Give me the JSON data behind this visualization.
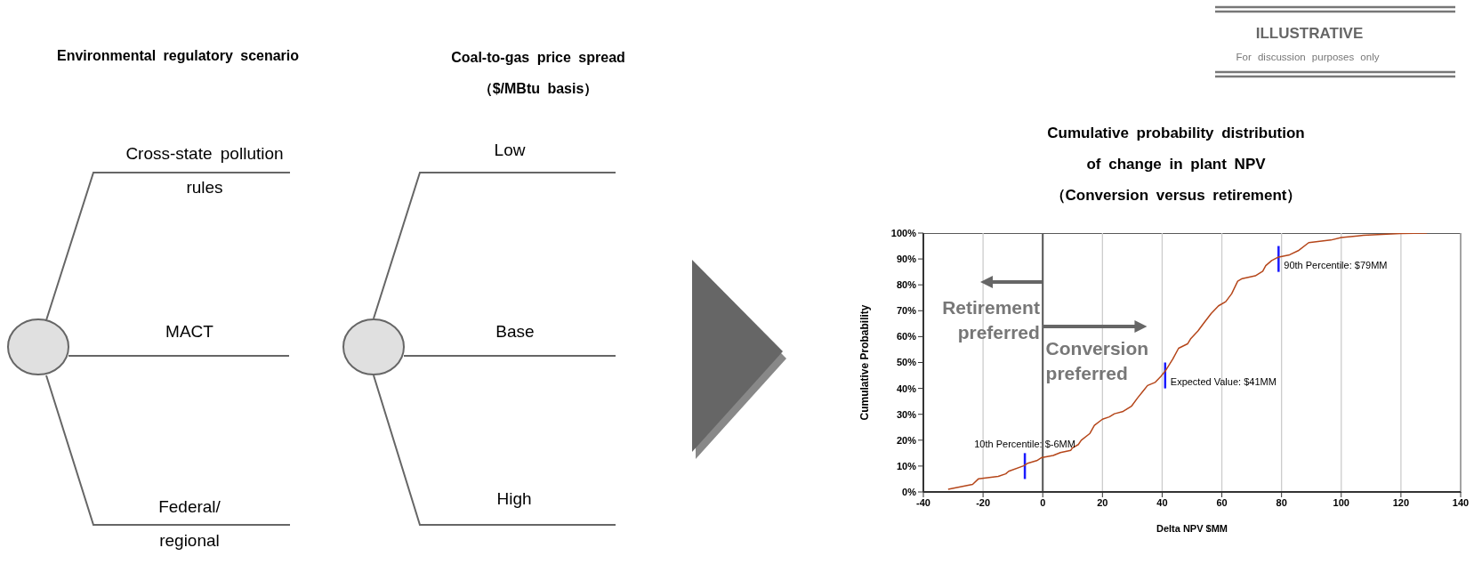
{
  "chart_data": [
    {
      "type": "other",
      "annotations": [
        "Environmental regulatory scenario",
        "Coal-to-gas price spread",
        "（$/MBtu basis）",
        "Cross-state pollution rules",
        "MACT",
        "Federal/ regional",
        "Low",
        "Base",
        "High"
      ]
    },
    {
      "type": "line",
      "title": "Cumulative probability distribution of change in plant NPV",
      "subtitle": "（Conversion versus retirement）",
      "xlabel": "Delta NPV $MM",
      "ylabel": "Cumulative Probability",
      "x": [
        -31.7,
        -23.5,
        -21.5,
        -14.9,
        -12.4,
        -11.4,
        -6.4,
        -5,
        -2,
        -0.5,
        3.5,
        5.9,
        9.4,
        9.9,
        11.9,
        12.9,
        15.8,
        17.3,
        20,
        22.3,
        24,
        26.7,
        29.7,
        31.7,
        33.7,
        35.1,
        37.6,
        39.6,
        41.1,
        43.6,
        45.5,
        48.5,
        49.5,
        52,
        54,
        56.4,
        58.9,
        61.3,
        63.3,
        65.3,
        66.8,
        71.2,
        73.7,
        74.7,
        76.7,
        78.7,
        82.7,
        85.6,
        89.1,
        96.5,
        100,
        107.4,
        119.8,
        128.7
      ],
      "values": [
        1,
        2.9,
        5.1,
        6,
        7,
        8,
        10.1,
        11.1,
        12.1,
        13.2,
        14.1,
        15.2,
        16.1,
        17,
        18.3,
        20,
        22.6,
        25.7,
        28.1,
        29,
        30.2,
        31,
        33.1,
        36.2,
        39.1,
        41.1,
        42.3,
        44.7,
        46.8,
        51.4,
        55.5,
        57.2,
        59.1,
        62.2,
        65.3,
        68.9,
        71.9,
        73.5,
        76.6,
        81.4,
        82.4,
        83.5,
        85.3,
        87.4,
        89.4,
        90.6,
        91.6,
        93.2,
        96.3,
        97.3,
        98.3,
        99.1,
        99.8,
        100
      ],
      "color": "#b5461a",
      "xlim": [
        -40,
        140
      ],
      "xticks": [
        -40,
        -20,
        0,
        20,
        40,
        60,
        80,
        100,
        120,
        140
      ],
      "ylim": [
        0,
        100
      ],
      "yticks": [
        {
          "value": 0,
          "label": "0%"
        },
        {
          "value": 10,
          "label": "10%"
        },
        {
          "value": 20,
          "label": "20%"
        },
        {
          "value": 30,
          "label": "30%"
        },
        {
          "value": 40,
          "label": "40%"
        },
        {
          "value": 50,
          "label": "50%"
        },
        {
          "value": 60,
          "label": "60%"
        },
        {
          "value": 70,
          "label": "70%"
        },
        {
          "value": 80,
          "label": "80%"
        },
        {
          "value": 90,
          "label": "90%"
        },
        {
          "value": 100,
          "label": "100%"
        }
      ],
      "grid": "x",
      "ref_lines": [
        {
          "axis": "x",
          "value": 0,
          "color": "#555555"
        }
      ],
      "annotations": [
        "ILLUSTRATIVE",
        "For discussion purposes only",
        "Retirement preferred",
        "Conversion preferred",
        {
          "text": "10th Percentile: $-6MM",
          "x": -6,
          "y": 10
        },
        {
          "text": "Expected Value: $41MM",
          "x": 41,
          "y": 45
        },
        {
          "text": "90th Percentile: $79MM",
          "x": 79,
          "y": 90
        }
      ]
    }
  ]
}
